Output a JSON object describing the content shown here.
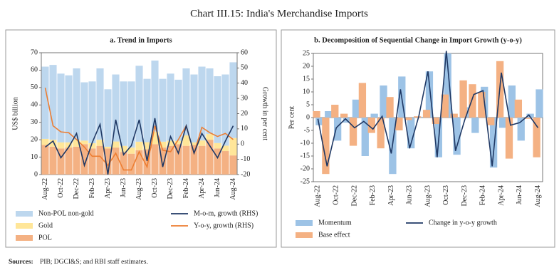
{
  "title": "Chart III.15: India's Merchandise Imports",
  "source_label": "Sources:",
  "source": "PIB; DGCI&S; and RBI staff estimates.",
  "chart_data": [
    {
      "type": "combo",
      "title": "a. Trend in Imports",
      "y_label": "US$ billion",
      "y2_label": "Growth in per cent",
      "categories": [
        "Aug-22",
        null,
        "Oct-22",
        null,
        "Dec-22",
        null,
        "Feb-23",
        null,
        "Apr-23",
        null,
        "Jun-23",
        null,
        "Aug-23",
        null,
        "Oct-23",
        null,
        "Dec-23",
        null,
        "Feb-24",
        null,
        "Apr-24",
        null,
        "Jun-24",
        null,
        "Aug-24"
      ],
      "ylim": [
        0,
        70
      ],
      "yticks": [
        0,
        10,
        20,
        30,
        40,
        50,
        60,
        70
      ],
      "y2lim": [
        -20,
        60
      ],
      "y2ticks": [
        -20,
        -10,
        0,
        10,
        20,
        30,
        40,
        50,
        60
      ],
      "legend": "bottom",
      "stacked": true,
      "series": [
        {
          "name": "POL",
          "type": "bar",
          "color": "#f4b183",
          "values": [
            17,
            16,
            15,
            15.5,
            16,
            17.5,
            15,
            16.5,
            15,
            15.5,
            13,
            12,
            14,
            14.5,
            17.5,
            15.5,
            16.5,
            17.5,
            16.5,
            17,
            16.5,
            20,
            15,
            13.5,
            11
          ]
        },
        {
          "name": "Gold",
          "type": "bar",
          "color": "#ffe699",
          "values": [
            3.5,
            4,
            3.5,
            3,
            4,
            2,
            3,
            3.5,
            1,
            3.5,
            3.5,
            3.5,
            4.9,
            4.1,
            7.2,
            3.4,
            3,
            1.9,
            6,
            1.5,
            3.1,
            3.3,
            3.1,
            3.1,
            10
          ]
        },
        {
          "name": "Non-POL non-gold",
          "type": "bar",
          "color": "#bdd7ee",
          "values": [
            41.5,
            43,
            39.5,
            38.5,
            41,
            33.5,
            35.5,
            41,
            33,
            38.5,
            37,
            38,
            43.6,
            36.4,
            40.8,
            36.1,
            38.5,
            35.1,
            38.5,
            39,
            42.4,
            37.7,
            38.4,
            40.9,
            43.5
          ]
        },
        {
          "name": "Y-o-y, growth (RHS)",
          "type": "line",
          "axis": "y2",
          "color": "#ed7d31",
          "values": [
            37,
            12,
            8,
            7.5,
            3,
            -2,
            -8,
            -8,
            -14,
            -6,
            -17,
            -17,
            -5,
            -15,
            12,
            -4,
            -5,
            3,
            12,
            -6,
            11,
            7.5,
            5,
            7,
            3
          ]
        },
        {
          "name": "M-o-m, growth (RHS)",
          "type": "line",
          "axis": "y2",
          "color": "#1f3864",
          "values": [
            -2,
            2,
            -9,
            -2,
            7,
            -14,
            1,
            13,
            -20,
            16,
            -7,
            -1,
            16,
            -11,
            17,
            -15,
            5,
            -6,
            12,
            -6,
            7,
            -1,
            -9,
            2,
            12
          ]
        }
      ]
    },
    {
      "type": "combo",
      "title": "b. Decomposition of  Sequential Change in Import Growth (y-o-y)",
      "y_label": "Per cent",
      "categories": [
        "Aug-22",
        null,
        "Oct-22",
        null,
        "Dec-22",
        null,
        "Feb-23",
        null,
        "Apr-23",
        null,
        "Jun-23",
        null,
        "Aug-23",
        null,
        "Oct-23",
        null,
        "Dec-23",
        null,
        "Feb-24",
        null,
        "Apr-24",
        null,
        "Jun-24",
        null,
        "Aug-24"
      ],
      "ylim": [
        -25,
        25
      ],
      "yticks": [
        -25,
        -20,
        -15,
        -10,
        -5,
        0,
        5,
        10,
        15,
        20,
        25
      ],
      "legend": "bottom",
      "stacked": false,
      "series": [
        {
          "name": "Momentum",
          "type": "bar",
          "color": "#9dc3e6",
          "values": [
            -3,
            2.5,
            -9,
            -2,
            7,
            -15,
            1.5,
            12.5,
            -22,
            16,
            -12,
            0.3,
            18,
            -15.5,
            25,
            -14.5,
            4,
            -6,
            12,
            -19.5,
            -4,
            12.5,
            -9,
            1.5,
            11
          ]
        },
        {
          "name": "Base effect",
          "type": "bar",
          "color": "#f4b183",
          "values": [
            2.5,
            -22,
            5,
            1.5,
            -11,
            13.5,
            -6,
            -12,
            8,
            -5,
            -1,
            0.5,
            3,
            -2.5,
            9,
            1.5,
            14.5,
            13,
            10,
            -3,
            22,
            -16,
            7,
            -0.5,
            -15.5
          ]
        },
        {
          "name": "Change in y-o-y growth",
          "type": "line",
          "color": "#1f3864",
          "values": [
            -0.5,
            -19,
            -4,
            -0.5,
            -4,
            -1.5,
            -4.5,
            0.5,
            -14,
            11,
            -12,
            0.5,
            18,
            -15.5,
            26,
            -13,
            -1,
            9,
            10.5,
            -19,
            17.5,
            -3,
            -2,
            1,
            -4
          ]
        }
      ]
    }
  ]
}
